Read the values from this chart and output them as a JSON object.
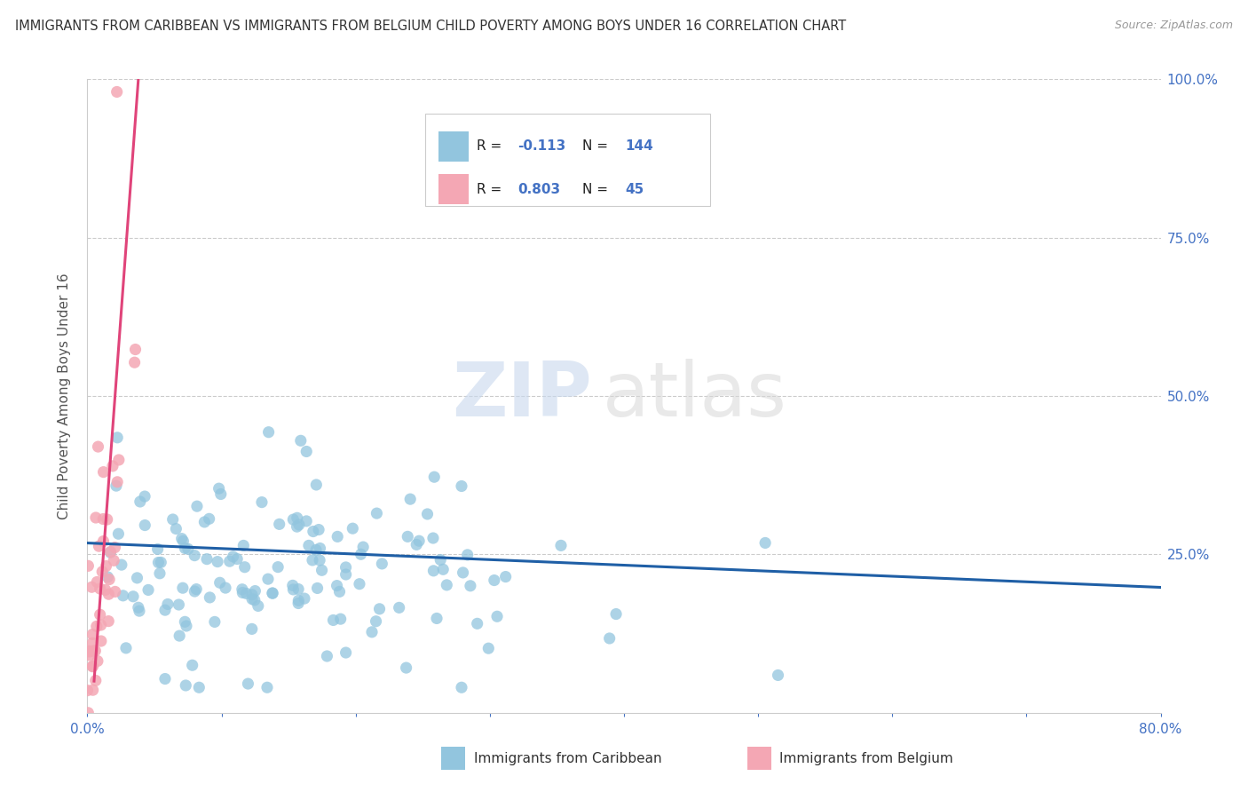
{
  "title": "IMMIGRANTS FROM CARIBBEAN VS IMMIGRANTS FROM BELGIUM CHILD POVERTY AMONG BOYS UNDER 16 CORRELATION CHART",
  "source": "Source: ZipAtlas.com",
  "ylabel": "Child Poverty Among Boys Under 16",
  "xlim": [
    0.0,
    0.8
  ],
  "ylim": [
    0.0,
    1.0
  ],
  "xticks": [
    0.0,
    0.1,
    0.2,
    0.3,
    0.4,
    0.5,
    0.6,
    0.7,
    0.8
  ],
  "xticklabels": [
    "0.0%",
    "",
    "",
    "",
    "",
    "",
    "",
    "",
    "80.0%"
  ],
  "yticks": [
    0.0,
    0.25,
    0.5,
    0.75,
    1.0
  ],
  "yticklabels_right": [
    "",
    "25.0%",
    "50.0%",
    "75.0%",
    "100.0%"
  ],
  "blue_R": -0.113,
  "blue_N": 144,
  "pink_R": 0.803,
  "pink_N": 45,
  "blue_color": "#92c5de",
  "pink_color": "#f4a7b4",
  "blue_line_color": "#1f5fa6",
  "pink_line_color": "#e0447a",
  "watermark_zip": "ZIP",
  "watermark_atlas": "atlas",
  "legend_labels": [
    "Immigrants from Caribbean",
    "Immigrants from Belgium"
  ],
  "background_color": "#ffffff",
  "grid_color": "#cccccc",
  "title_color": "#333333",
  "tick_color": "#4472c4",
  "ylabel_color": "#555555",
  "seed": 42,
  "blue_line_start_y": 0.268,
  "blue_line_end_y": 0.198,
  "pink_line_x0": 0.005,
  "pink_line_y0": 0.05,
  "pink_line_x1": 0.038,
  "pink_line_y1": 1.0
}
